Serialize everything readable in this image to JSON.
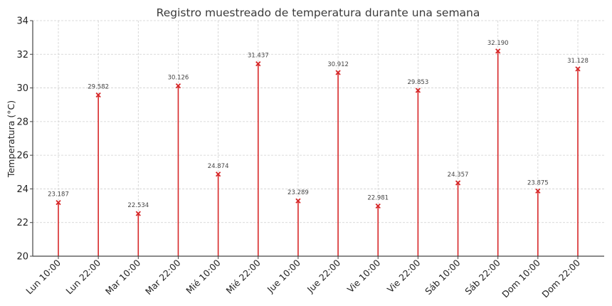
{
  "chart_data": {
    "type": "stem",
    "title": "Registro muestreado de temperatura durante una semana",
    "xlabel": "",
    "ylabel": "Temperatura (°C)",
    "ylim": [
      20,
      34
    ],
    "yticks": [
      20,
      22,
      24,
      26,
      28,
      30,
      32,
      34
    ],
    "grid": true,
    "marker": "x",
    "color": "#d62728",
    "categories": [
      "Lun 10:00",
      "Lun 22:00",
      "Mar 10:00",
      "Mar 22:00",
      "Mié 10:00",
      "Mié 22:00",
      "Jue 10:00",
      "Jue 22:00",
      "Vie 10:00",
      "Vie 22:00",
      "Sáb 10:00",
      "Sáb 22:00",
      "Dom 10:00",
      "Dom 22:00"
    ],
    "values": [
      23.187,
      29.582,
      22.534,
      30.126,
      24.874,
      31.437,
      23.289,
      30.912,
      22.981,
      29.853,
      24.357,
      32.19,
      23.875,
      31.128
    ],
    "value_labels": [
      "23.187",
      "29.582",
      "22.534",
      "30.126",
      "24.874",
      "31.437",
      "23.289",
      "30.912",
      "22.981",
      "29.853",
      "24.357",
      "32.190",
      "23.875",
      "31.128"
    ]
  }
}
